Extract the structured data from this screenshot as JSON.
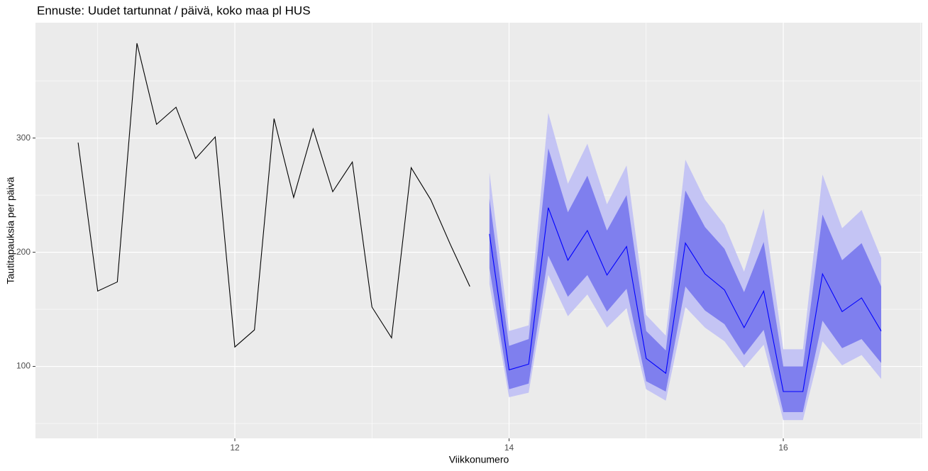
{
  "chart_data": {
    "type": "line",
    "title": "Ennuste: Uudet tartunnat / päivä, koko maa pl HUS",
    "x_label": "Viikkonumero",
    "y_label": "Tautitapauksia per päivä",
    "xlim": [
      10.546,
      17.014
    ],
    "ylim": [
      37,
      401
    ],
    "xticks": [
      12,
      14,
      16
    ],
    "yticks": [
      100,
      200,
      300
    ],
    "grid": true,
    "series": [
      {
        "color": "#000000",
        "x": [
          10.857,
          11,
          11.143,
          11.286,
          11.429,
          11.571,
          11.714,
          11.857,
          12,
          12.143,
          12.286,
          12.429,
          12.571,
          12.714,
          12.857,
          13,
          13.143,
          13.286,
          13.429,
          13.571,
          13.714
        ],
        "values": [
          296,
          166,
          174,
          383,
          312,
          327,
          282,
          301,
          117,
          132,
          317,
          248,
          308,
          253,
          279,
          152,
          125,
          274,
          246,
          207,
          170
        ]
      },
      {
        "color": "#0000ff",
        "x": [
          13.857,
          14,
          14.143,
          14.286,
          14.429,
          14.571,
          14.714,
          14.857,
          15,
          15.143,
          15.286,
          15.429,
          15.571,
          15.714,
          15.857,
          16,
          16.143,
          16.286,
          16.429,
          16.571,
          16.714
        ],
        "values": [
          216,
          97,
          102,
          239,
          193,
          219,
          180,
          205,
          107,
          94,
          208,
          181,
          167,
          134,
          166,
          78,
          78,
          181,
          148,
          160,
          131
        ]
      }
    ],
    "bands": [
      {
        "color": "#c4c4f4",
        "x": [
          13.857,
          14,
          14.143,
          14.286,
          14.429,
          14.571,
          14.714,
          14.857,
          15,
          15.143,
          15.286,
          15.429,
          15.571,
          15.714,
          15.857,
          16,
          16.143,
          16.286,
          16.429,
          16.571,
          16.714
        ],
        "lower": [
          172,
          73,
          77,
          180,
          144,
          163,
          134,
          151,
          80,
          70,
          152,
          134,
          122,
          99,
          119,
          53,
          53,
          122,
          101,
          110,
          89
        ],
        "upper": [
          270,
          131,
          136,
          322,
          260,
          295,
          242,
          276,
          145,
          127,
          281,
          246,
          224,
          183,
          238,
          115,
          115,
          268,
          221,
          237,
          195
        ]
      },
      {
        "color": "#7f7fee",
        "x": [
          13.857,
          14,
          14.143,
          14.286,
          14.429,
          14.571,
          14.714,
          14.857,
          15,
          15.143,
          15.286,
          15.429,
          15.571,
          15.714,
          15.857,
          16,
          16.143,
          16.286,
          16.429,
          16.571,
          16.714
        ],
        "lower": [
          186,
          80,
          85,
          197,
          161,
          180,
          148,
          168,
          87,
          78,
          170,
          149,
          137,
          110,
          132,
          60,
          60,
          140,
          116,
          124,
          103
        ],
        "upper": [
          247,
          118,
          124,
          291,
          235,
          267,
          219,
          250,
          131,
          114,
          254,
          222,
          203,
          165,
          209,
          100,
          100,
          233,
          193,
          208,
          170
        ]
      }
    ]
  }
}
